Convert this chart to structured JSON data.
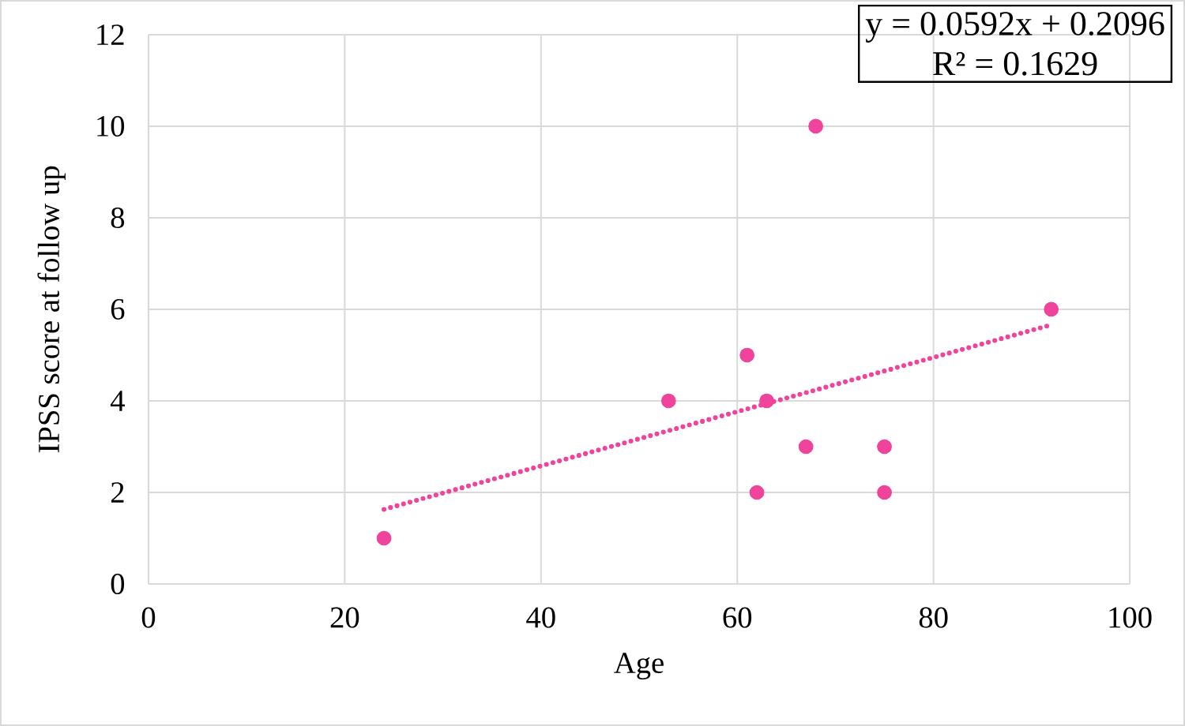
{
  "chart_data": {
    "type": "scatter",
    "xlabel": "Age",
    "ylabel": "IPSS score at follow up",
    "xlim": [
      0,
      100
    ],
    "xticks": [
      0,
      20,
      40,
      60,
      80,
      100
    ],
    "ylim": [
      0,
      12
    ],
    "yticks": [
      0,
      2,
      4,
      6,
      8,
      10,
      12
    ],
    "grid": true,
    "annotations": [
      "y = 0.0592x + 0.2096",
      "R² = 0.1629"
    ],
    "series": [
      {
        "color": "#f0439b",
        "marker": "circle",
        "x": [
          24,
          53,
          61,
          62,
          63,
          67,
          68,
          75,
          75,
          92
        ],
        "values": [
          1,
          4,
          5,
          2,
          4,
          3,
          10,
          3,
          2,
          6
        ]
      },
      {
        "type": "line",
        "color": "#f0439b",
        "marker": "none",
        "line_style": "dotted",
        "x": [
          24,
          92
        ],
        "values": [
          1.63,
          5.66
        ]
      }
    ]
  }
}
